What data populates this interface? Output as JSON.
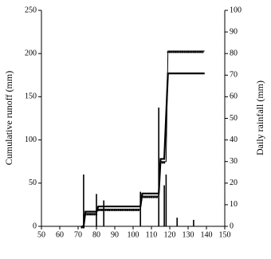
{
  "chart_data": {
    "type": "line",
    "ylabel": "Cumulative runoff (mm)",
    "y2label": "Daily rainfall (mm)",
    "xlim": [
      50,
      150
    ],
    "xticks": [
      50,
      60,
      70,
      80,
      90,
      100,
      110,
      120,
      130,
      140,
      150
    ],
    "ylim": [
      0,
      250
    ],
    "yticks": [
      0,
      50,
      100,
      150,
      200,
      250
    ],
    "y2lim": [
      0,
      100
    ],
    "y2ticks": [
      0,
      10,
      20,
      30,
      40,
      50,
      60,
      70,
      80,
      90,
      100
    ],
    "series": [
      {
        "type": "line",
        "color": "#000000",
        "markers": true,
        "x": [
          72,
          73,
          74,
          80,
          81,
          104,
          105,
          114,
          115,
          118,
          119,
          139
        ],
        "values": [
          0,
          0,
          15,
          15,
          20,
          20,
          35,
          35,
          75,
          75,
          203,
          203
        ]
      },
      {
        "type": "line",
        "color": "#000000",
        "markers": false,
        "x": [
          72,
          73,
          74,
          80,
          81,
          104,
          105,
          114,
          115,
          117,
          119,
          139
        ],
        "values": [
          0,
          0,
          17,
          17,
          23,
          23,
          38,
          38,
          78,
          78,
          177,
          177
        ]
      },
      {
        "type": "bar",
        "axis": "y2",
        "color": "#000000",
        "x": [
          73,
          80,
          84,
          104,
          114,
          117,
          118,
          124,
          133
        ],
        "values": [
          24,
          15,
          12,
          16,
          55,
          19,
          24,
          4,
          3
        ]
      }
    ]
  }
}
